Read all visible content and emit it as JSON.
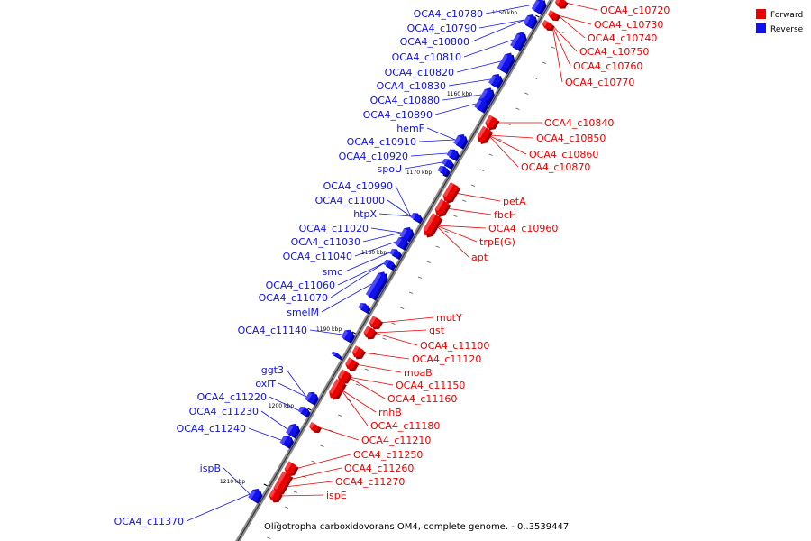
{
  "colors": {
    "forward": "#ee0000",
    "forward_dark": "#9e0000",
    "forward_light": "#ff7a7a",
    "reverse": "#1111ee",
    "reverse_dark": "#00009e",
    "reverse_light": "#7a7aff",
    "backbone": "#8c8c8c"
  },
  "legend": {
    "forward_label": "Forward",
    "reverse_label": "Reverse"
  },
  "caption": "Oligotropha carboxidovorans OM4, complete genome. - 0..3539447",
  "ticks": [
    {
      "label": "1150 kbp"
    },
    {
      "label": "1160 kbp"
    },
    {
      "label": "1170 kbp"
    },
    {
      "label": "1180 kbp"
    },
    {
      "label": "1190 kbp"
    },
    {
      "label": "1200 kbp"
    },
    {
      "label": "1210 kbp"
    }
  ],
  "forward_labels": [
    "OCA4_c10720",
    "OCA4_c10730",
    "OCA4_c10740",
    "OCA4_c10750",
    "OCA4_c10760",
    "OCA4_c10770",
    "OCA4_c10840",
    "OCA4_c10850",
    "OCA4_c10860",
    "OCA4_c10870",
    "petA",
    "fbcH",
    "OCA4_c10960",
    "trpE(G)",
    "apt",
    "mutY",
    "gst",
    "OCA4_c11100",
    "OCA4_c11120",
    "moaB",
    "OCA4_c11150",
    "OCA4_c11160",
    "rnhB",
    "OCA4_c11180",
    "OCA4_c11210",
    "OCA4_c11250",
    "OCA4_c11260",
    "OCA4_c11270",
    "ispE"
  ],
  "reverse_labels": [
    "OCA4_c10780",
    "OCA4_c10790",
    "OCA4_c10800",
    "OCA4_c10810",
    "OCA4_c10820",
    "OCA4_c10830",
    "OCA4_c10880",
    "OCA4_c10890",
    "hemF",
    "OCA4_c10910",
    "OCA4_c10920",
    "spoU",
    "OCA4_c10990",
    "OCA4_c11000",
    "htpX",
    "OCA4_c11020",
    "OCA4_c11030",
    "OCA4_c11040",
    "smc",
    "OCA4_c11060",
    "OCA4_c11070",
    "smelM",
    "OCA4_c11140",
    "ggt3",
    "oxlT",
    "OCA4_c11220",
    "OCA4_c11230",
    "OCA4_c11240",
    "ispB",
    "OCA4_c11370"
  ]
}
